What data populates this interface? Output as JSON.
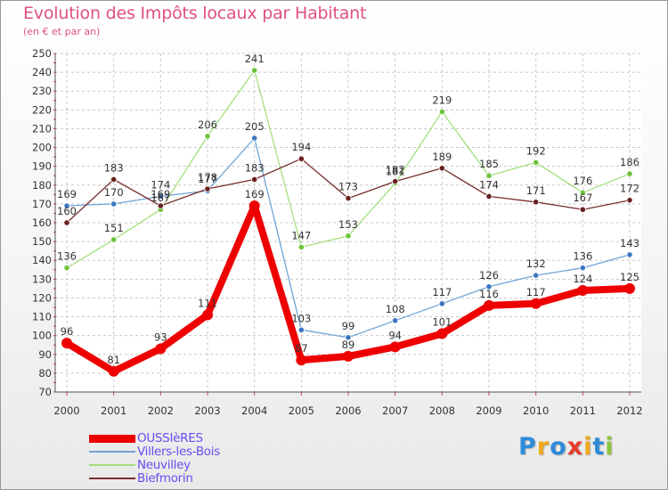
{
  "header": {
    "title": "Evolution des Impôts locaux par Habitant",
    "subtitle": "(en € et par an)"
  },
  "brand": {
    "letters": [
      "P",
      "r",
      "o",
      "x",
      "i",
      "t",
      "i"
    ],
    "colors": [
      "#2e8bd8",
      "#f0a81c",
      "#2e8bd8",
      "#e63b2e",
      "#f0a81c",
      "#2e8bd8",
      "#8bc63f"
    ]
  },
  "chart_data": {
    "type": "line",
    "title": "Evolution des Impôts locaux par Habitant",
    "subtitle": "(en € et par an)",
    "xlabel": "",
    "ylabel": "",
    "x": [
      2000,
      2001,
      2002,
      2003,
      2004,
      2005,
      2006,
      2007,
      2008,
      2009,
      2010,
      2011,
      2012
    ],
    "x_tick_labels": [
      "2000",
      "2001",
      "2002",
      "2003",
      "2004",
      "2005",
      "2006",
      "2007",
      "2008",
      "2009",
      "2010",
      "2011",
      "2012"
    ],
    "ylim": [
      70,
      250
    ],
    "y_ticks": [
      70,
      80,
      90,
      100,
      110,
      120,
      130,
      140,
      150,
      160,
      170,
      180,
      190,
      200,
      210,
      220,
      230,
      240,
      250
    ],
    "grid": true,
    "legend_position": "bottom-left",
    "series": [
      {
        "name": "OUSSIèRES",
        "color": "#ee0000",
        "marker_color": "#ee0000",
        "emphasis": true,
        "values": [
          96,
          81,
          93,
          111,
          169,
          87,
          89,
          94,
          101,
          116,
          117,
          124,
          125
        ],
        "labels": [
          "96",
          "81",
          "93",
          "111",
          "169",
          "87",
          "89",
          "94",
          "101",
          "116",
          "117",
          "124",
          "125"
        ]
      },
      {
        "name": "Villers-les-Bois",
        "color": "#6fa3d4",
        "marker_color": "#3a78c2",
        "emphasis": false,
        "values": [
          169,
          170,
          174,
          177,
          205,
          103,
          99,
          108,
          117,
          126,
          132,
          136,
          143
        ],
        "labels": [
          "169",
          "170",
          "174",
          "177",
          "205",
          "103",
          "99",
          "108",
          "117",
          "126",
          "132",
          "136",
          "143"
        ]
      },
      {
        "name": "Neuvilley",
        "color": "#a4e07c",
        "marker_color": "#6cc43a",
        "emphasis": false,
        "values": [
          136,
          151,
          167,
          206,
          241,
          147,
          153,
          181,
          219,
          185,
          192,
          176,
          186
        ],
        "labels": [
          "136",
          "151",
          "167",
          "206",
          "241",
          "147",
          "153",
          "181",
          "219",
          "185",
          "192",
          "176",
          "186"
        ]
      },
      {
        "name": "Biefmorin",
        "color": "#7a2e2e",
        "marker_color": "#6a2020",
        "emphasis": false,
        "values": [
          160,
          183,
          169,
          178,
          183,
          194,
          173,
          182,
          189,
          174,
          171,
          167,
          172
        ],
        "labels": [
          "160",
          "183",
          "169",
          "178",
          "183",
          "194",
          "173",
          "182",
          "189",
          "174",
          "171",
          "167",
          "172"
        ]
      }
    ]
  }
}
